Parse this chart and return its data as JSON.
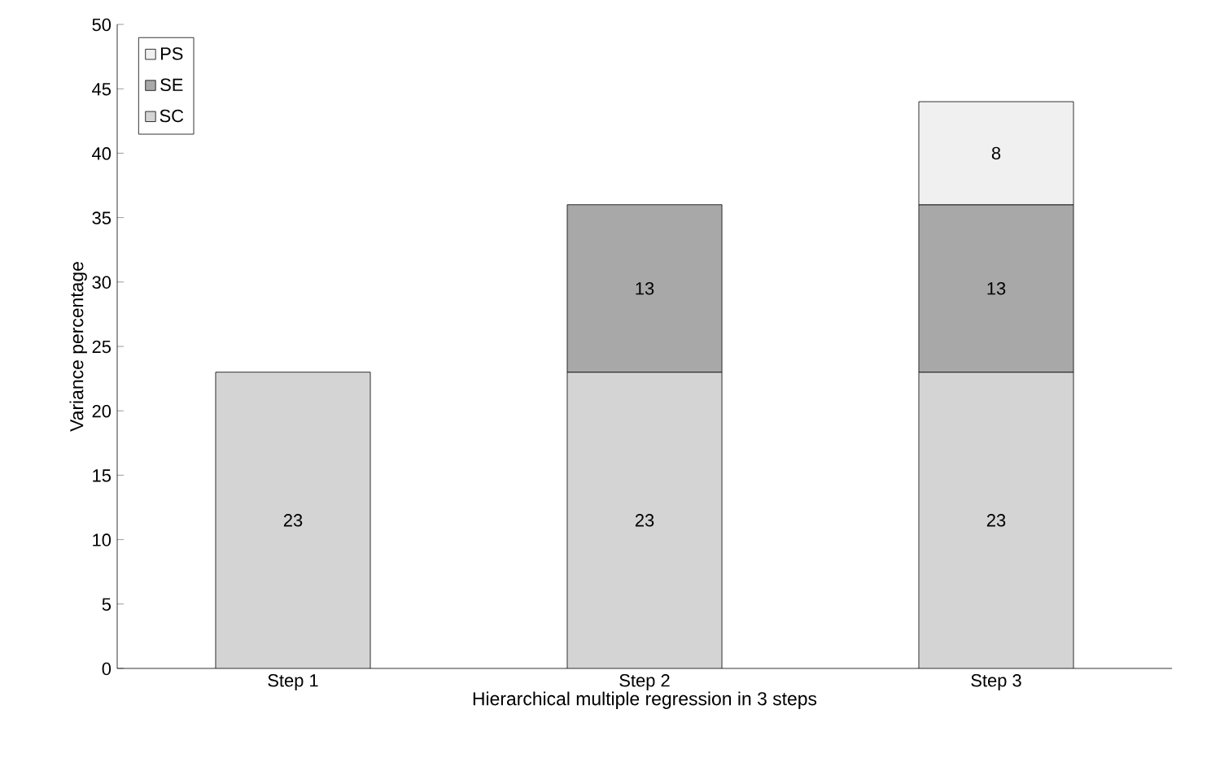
{
  "chart_data": {
    "type": "bar",
    "stacked": true,
    "xlabel": "Hierarchical multiple regression in 3 steps",
    "ylabel": "Variance percentage",
    "categories": [
      "Step 1",
      "Step 2",
      "Step 3"
    ],
    "series": [
      {
        "name": "SC",
        "color": "#d4d4d4",
        "values": [
          23,
          23,
          23
        ]
      },
      {
        "name": "SE",
        "color": "#a8a8a8",
        "values": [
          null,
          13,
          13
        ]
      },
      {
        "name": "PS",
        "color": "#f0f0f0",
        "values": [
          null,
          null,
          8
        ]
      }
    ],
    "ylim": [
      0,
      50
    ],
    "yticks": [
      0,
      5,
      10,
      15,
      20,
      25,
      30,
      35,
      40,
      45,
      50
    ],
    "data_labels": true,
    "legend": "top left",
    "grid": false
  }
}
